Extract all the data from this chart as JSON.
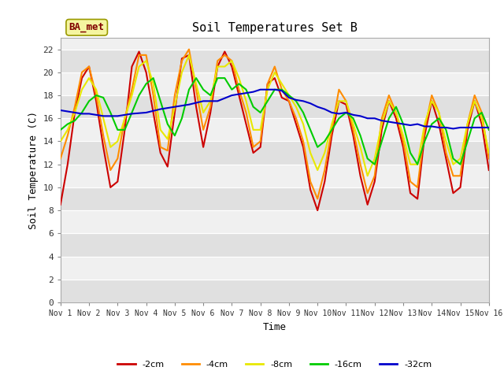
{
  "title": "Soil Temperatures Set B",
  "xlabel": "Time",
  "ylabel": "Soil Temperature (C)",
  "ylim": [
    0,
    23
  ],
  "yticks": [
    0,
    2,
    4,
    6,
    8,
    10,
    12,
    14,
    16,
    18,
    20,
    22
  ],
  "xlim": [
    0,
    15
  ],
  "xtick_labels": [
    "Nov 1",
    "Nov 2",
    "Nov 3",
    "Nov 4",
    "Nov 5",
    "Nov 6",
    "Nov 7",
    "Nov 8",
    "Nov 9",
    "Nov 10",
    "Nov 11",
    "Nov 12",
    "Nov 13",
    "Nov 14",
    "Nov 15",
    "Nov 16"
  ],
  "annotation": "BA_met",
  "fig_bg": "#ffffff",
  "plot_bg_light": "#f0f0f0",
  "plot_bg_dark": "#e0e0e0",
  "series": {
    "-2cm": {
      "color": "#cc0000",
      "x": [
        0,
        0.25,
        0.5,
        0.75,
        1.0,
        1.25,
        1.5,
        1.75,
        2.0,
        2.25,
        2.5,
        2.75,
        3.0,
        3.25,
        3.5,
        3.75,
        4.0,
        4.25,
        4.5,
        4.75,
        5.0,
        5.25,
        5.5,
        5.75,
        6.0,
        6.25,
        6.5,
        6.75,
        7.0,
        7.25,
        7.5,
        7.75,
        8.0,
        8.25,
        8.5,
        8.75,
        9.0,
        9.25,
        9.5,
        9.75,
        10.0,
        10.25,
        10.5,
        10.75,
        11.0,
        11.25,
        11.5,
        11.75,
        12.0,
        12.25,
        12.5,
        12.75,
        13.0,
        13.25,
        13.5,
        13.75,
        14.0,
        14.25,
        14.5,
        14.75,
        15.0
      ],
      "y": [
        8.5,
        12.0,
        16.5,
        19.5,
        20.5,
        17.5,
        13.5,
        10.0,
        10.5,
        15.0,
        20.5,
        21.8,
        20.0,
        16.5,
        13.0,
        11.8,
        16.5,
        21.2,
        21.5,
        17.0,
        13.5,
        16.5,
        20.5,
        21.8,
        20.5,
        18.0,
        15.5,
        13.0,
        13.5,
        19.0,
        19.5,
        17.8,
        17.5,
        15.5,
        13.5,
        9.8,
        8.0,
        10.5,
        14.5,
        17.5,
        17.2,
        14.5,
        11.0,
        8.5,
        10.5,
        15.0,
        17.5,
        16.0,
        13.5,
        9.5,
        9.0,
        14.5,
        17.5,
        15.5,
        12.5,
        9.5,
        10.0,
        15.0,
        17.5,
        15.5,
        11.5
      ]
    },
    "-4cm": {
      "color": "#ff8c00",
      "x": [
        0,
        0.25,
        0.5,
        0.75,
        1.0,
        1.25,
        1.5,
        1.75,
        2.0,
        2.25,
        2.5,
        2.75,
        3.0,
        3.25,
        3.5,
        3.75,
        4.0,
        4.25,
        4.5,
        4.75,
        5.0,
        5.25,
        5.5,
        5.75,
        6.0,
        6.25,
        6.5,
        6.75,
        7.0,
        7.25,
        7.5,
        7.75,
        8.0,
        8.25,
        8.5,
        8.75,
        9.0,
        9.25,
        9.5,
        9.75,
        10.0,
        10.25,
        10.5,
        10.75,
        11.0,
        11.25,
        11.5,
        11.75,
        12.0,
        12.25,
        12.5,
        12.75,
        13.0,
        13.25,
        13.5,
        13.75,
        14.0,
        14.25,
        14.5,
        14.75,
        15.0
      ],
      "y": [
        12.5,
        14.5,
        17.0,
        20.0,
        20.5,
        18.0,
        14.5,
        11.5,
        12.5,
        16.0,
        18.5,
        21.5,
        21.5,
        18.0,
        13.5,
        13.2,
        18.0,
        21.0,
        22.0,
        18.5,
        15.0,
        17.0,
        21.0,
        21.5,
        21.0,
        18.5,
        16.5,
        13.5,
        14.0,
        19.0,
        20.5,
        18.5,
        17.5,
        16.0,
        14.0,
        10.5,
        9.0,
        11.5,
        15.0,
        18.5,
        17.5,
        15.0,
        12.0,
        9.5,
        11.0,
        16.0,
        18.0,
        16.5,
        14.0,
        10.5,
        10.0,
        15.0,
        18.0,
        16.5,
        13.0,
        11.0,
        11.0,
        15.5,
        18.0,
        16.5,
        12.5
      ]
    },
    "-8cm": {
      "color": "#e8e800",
      "x": [
        0,
        0.25,
        0.5,
        0.75,
        1.0,
        1.25,
        1.5,
        1.75,
        2.0,
        2.25,
        2.5,
        2.75,
        3.0,
        3.25,
        3.5,
        3.75,
        4.0,
        4.25,
        4.5,
        4.75,
        5.0,
        5.25,
        5.5,
        5.75,
        6.0,
        6.25,
        6.5,
        6.75,
        7.0,
        7.25,
        7.5,
        7.75,
        8.0,
        8.25,
        8.5,
        8.75,
        9.0,
        9.25,
        9.5,
        9.75,
        10.0,
        10.25,
        10.5,
        10.75,
        11.0,
        11.25,
        11.5,
        11.75,
        12.0,
        12.25,
        12.5,
        12.75,
        13.0,
        13.25,
        13.5,
        13.75,
        14.0,
        14.25,
        14.5,
        14.75,
        15.0
      ],
      "y": [
        14.0,
        15.0,
        16.5,
        18.5,
        19.5,
        18.5,
        16.0,
        13.5,
        14.0,
        16.0,
        18.0,
        20.5,
        21.0,
        19.0,
        15.0,
        14.2,
        17.0,
        20.0,
        21.5,
        19.0,
        16.5,
        17.5,
        20.5,
        20.5,
        21.0,
        19.5,
        17.5,
        15.0,
        15.0,
        18.5,
        20.0,
        19.0,
        18.0,
        17.0,
        15.5,
        13.0,
        11.5,
        13.0,
        15.5,
        17.5,
        17.5,
        15.5,
        13.5,
        11.0,
        12.5,
        15.5,
        17.5,
        16.5,
        14.5,
        12.0,
        12.0,
        15.5,
        17.5,
        16.5,
        14.0,
        12.0,
        12.5,
        15.5,
        17.5,
        16.0,
        13.0
      ]
    },
    "-16cm": {
      "color": "#00cc00",
      "x": [
        0,
        0.25,
        0.5,
        0.75,
        1.0,
        1.25,
        1.5,
        1.75,
        2.0,
        2.25,
        2.5,
        2.75,
        3.0,
        3.25,
        3.5,
        3.75,
        4.0,
        4.25,
        4.5,
        4.75,
        5.0,
        5.25,
        5.5,
        5.75,
        6.0,
        6.25,
        6.5,
        6.75,
        7.0,
        7.25,
        7.5,
        7.75,
        8.0,
        8.25,
        8.5,
        8.75,
        9.0,
        9.25,
        9.5,
        9.75,
        10.0,
        10.25,
        10.5,
        10.75,
        11.0,
        11.25,
        11.5,
        11.75,
        12.0,
        12.25,
        12.5,
        12.75,
        13.0,
        13.25,
        13.5,
        13.75,
        14.0,
        14.25,
        14.5,
        14.75,
        15.0
      ],
      "y": [
        15.0,
        15.5,
        15.8,
        16.5,
        17.5,
        18.0,
        17.8,
        16.5,
        15.0,
        15.0,
        16.5,
        18.0,
        19.0,
        19.5,
        17.5,
        15.5,
        14.5,
        16.0,
        18.5,
        19.5,
        18.5,
        18.0,
        19.5,
        19.5,
        18.5,
        19.0,
        18.5,
        17.0,
        16.5,
        17.5,
        18.5,
        18.5,
        18.0,
        17.5,
        16.5,
        15.0,
        13.5,
        14.0,
        15.0,
        16.0,
        16.5,
        16.0,
        14.5,
        12.5,
        12.0,
        14.0,
        16.0,
        17.0,
        15.5,
        13.0,
        12.0,
        14.0,
        15.5,
        16.0,
        15.0,
        12.5,
        12.0,
        14.0,
        16.0,
        16.5,
        15.0
      ]
    },
    "-32cm": {
      "color": "#0000cc",
      "x": [
        0,
        0.25,
        0.5,
        0.75,
        1.0,
        1.25,
        1.5,
        1.75,
        2.0,
        2.5,
        3.0,
        3.5,
        4.0,
        4.5,
        5.0,
        5.5,
        6.0,
        6.25,
        6.5,
        6.75,
        7.0,
        7.25,
        7.5,
        7.75,
        8.0,
        8.25,
        8.5,
        8.75,
        9.0,
        9.25,
        9.5,
        9.75,
        10.0,
        10.25,
        10.5,
        10.75,
        11.0,
        11.25,
        11.5,
        11.75,
        12.0,
        12.25,
        12.5,
        12.75,
        13.0,
        13.25,
        13.5,
        13.75,
        14.0,
        14.25,
        14.5,
        14.75,
        15.0
      ],
      "y": [
        16.7,
        16.6,
        16.5,
        16.4,
        16.4,
        16.3,
        16.2,
        16.2,
        16.2,
        16.4,
        16.5,
        16.8,
        17.0,
        17.2,
        17.5,
        17.5,
        18.0,
        18.1,
        18.2,
        18.3,
        18.5,
        18.5,
        18.5,
        18.4,
        17.8,
        17.6,
        17.5,
        17.3,
        17.0,
        16.8,
        16.5,
        16.4,
        16.5,
        16.3,
        16.2,
        16.0,
        16.0,
        15.8,
        15.7,
        15.6,
        15.5,
        15.4,
        15.5,
        15.3,
        15.3,
        15.2,
        15.2,
        15.1,
        15.2,
        15.2,
        15.2,
        15.2,
        15.2
      ]
    }
  },
  "legend_order": [
    "-2cm",
    "-4cm",
    "-8cm",
    "-16cm",
    "-32cm"
  ]
}
